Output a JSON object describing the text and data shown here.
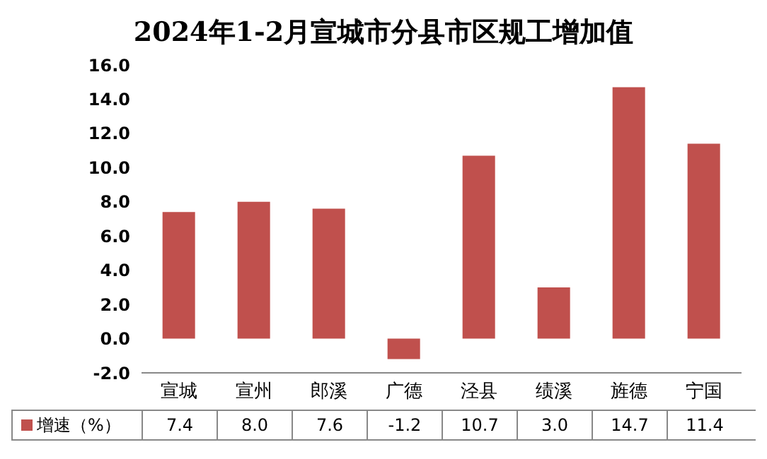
{
  "chart_data": {
    "type": "bar",
    "title": "2024年1-2月宣城市分县市区规工增加值",
    "categories": [
      "宣城",
      "宣州",
      "郎溪",
      "广德",
      "泾县",
      "绩溪",
      "旌德",
      "宁国"
    ],
    "series": [
      {
        "name": "增速（%）",
        "color": "#c0504d",
        "values": [
          7.4,
          8.0,
          7.6,
          -1.2,
          10.7,
          3.0,
          14.7,
          11.4
        ],
        "value_labels": [
          "7.4",
          "8.0",
          "7.6",
          "-1.2",
          "10.7",
          "3.0",
          "14.7",
          "11.4"
        ]
      }
    ],
    "ylim": [
      -2,
      16
    ],
    "yticks": [
      {
        "value": -2,
        "label": "-2.0"
      },
      {
        "value": 0,
        "label": "0.0"
      },
      {
        "value": 2,
        "label": "2.0"
      },
      {
        "value": 4,
        "label": "4.0"
      },
      {
        "value": 6,
        "label": "6.0"
      },
      {
        "value": 8,
        "label": "8.0"
      },
      {
        "value": 10,
        "label": "10.0"
      },
      {
        "value": 12,
        "label": "12.0"
      },
      {
        "value": 14,
        "label": "14.0"
      },
      {
        "value": 16,
        "label": "16.0"
      }
    ],
    "grid": false,
    "legend": "bottom"
  }
}
